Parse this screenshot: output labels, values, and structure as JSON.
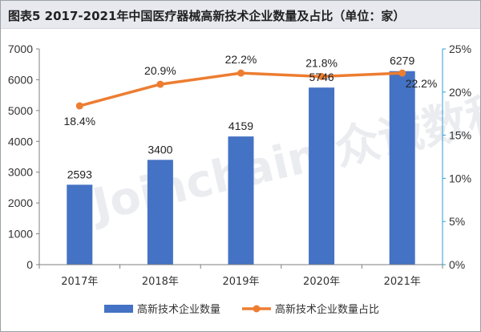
{
  "title": "图表5  2017-2021年中国医疗器械高新技术企业数量及占比（单位：家）",
  "watermark": "Joinchain.众诚数科",
  "chart_data": {
    "type": "bar",
    "categories": [
      "2017年",
      "2018年",
      "2019年",
      "2020年",
      "2021年"
    ],
    "series": [
      {
        "name": "高新技术企业数量",
        "type": "bar",
        "axis": "left",
        "color": "#4472c4",
        "values": [
          2593,
          3400,
          4159,
          5746,
          6279
        ],
        "labels": [
          "2593",
          "3400",
          "4159",
          "5746",
          "6279"
        ]
      },
      {
        "name": "高新技术企业数量占比",
        "type": "line",
        "axis": "right",
        "color": "#ed7d31",
        "values": [
          18.4,
          20.9,
          22.2,
          21.8,
          22.2
        ],
        "labels": [
          "18.4%",
          "20.9%",
          "22.2%",
          "21.8%",
          "22.2%"
        ]
      }
    ],
    "y_left": {
      "range": [
        0,
        7000
      ],
      "ticks": [
        "0",
        "1000",
        "2000",
        "3000",
        "4000",
        "5000",
        "6000",
        "7000"
      ]
    },
    "y_right": {
      "range": [
        0,
        25
      ],
      "ticks": [
        "0%",
        "5%",
        "10%",
        "15%",
        "20%",
        "25%"
      ],
      "color": "#2e9fd6"
    },
    "grid": false,
    "legend": "bottom"
  }
}
